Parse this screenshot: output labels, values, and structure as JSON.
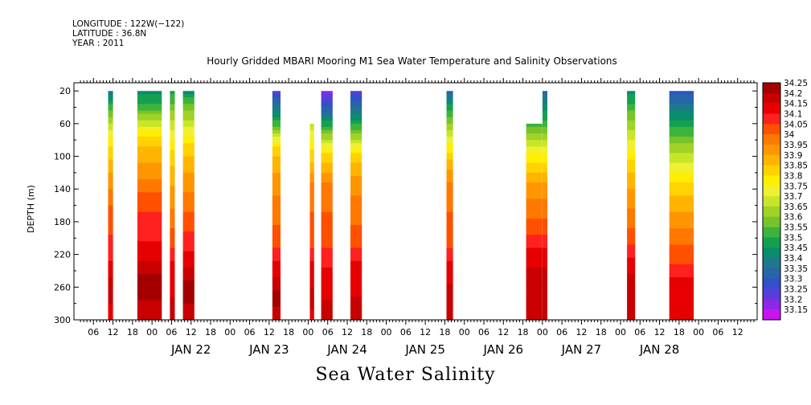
{
  "header": {
    "meta": [
      "LONGITUDE : 122W(−122)",
      "LATITUDE : 36.8N",
      "YEAR : 2011"
    ]
  },
  "chart_data": {
    "type": "heatmap",
    "title": "Hourly Gridded MBARI Mooring M1 Sea Water Temperature and Salinity Observations",
    "xlabel": "Sea Water Salinity",
    "ylabel": "DEPTH (m)",
    "x_unit": "hours since Jan 21 2011 00:00",
    "xlim": [
      0,
      210
    ],
    "ylim": [
      300,
      10
    ],
    "y_ticks": [
      20,
      60,
      100,
      140,
      180,
      220,
      260,
      300
    ],
    "hour_tick_labels": [
      "00",
      "06",
      "12",
      "18"
    ],
    "day_labels": [
      {
        "label": "JAN 22",
        "hour": 36
      },
      {
        "label": "JAN 23",
        "hour": 60
      },
      {
        "label": "JAN 24",
        "hour": 84
      },
      {
        "label": "JAN 25",
        "hour": 108
      },
      {
        "label": "JAN 26",
        "hour": 132
      },
      {
        "label": "JAN 27",
        "hour": 156
      },
      {
        "label": "JAN 28",
        "hour": 180
      }
    ],
    "colorbar": {
      "levels": [
        "34.25",
        "34.2",
        "34.15",
        "34.1",
        "34.05",
        "34",
        "33.95",
        "33.9",
        "33.85",
        "33.8",
        "33.75",
        "33.7",
        "33.65",
        "33.6",
        "33.55",
        "33.5",
        "33.45",
        "33.4",
        "33.35",
        "33.3",
        "33.25",
        "33.2",
        "33.15"
      ],
      "colors": [
        "#a50000",
        "#c80000",
        "#e60000",
        "#ff2020",
        "#ff5000",
        "#ff7800",
        "#ff9600",
        "#ffb400",
        "#ffd200",
        "#ffee00",
        "#f0f030",
        "#c8e628",
        "#a0d228",
        "#78c328",
        "#3cb43c",
        "#14a050",
        "#0a8c6e",
        "#1e788c",
        "#2864aa",
        "#3250c8",
        "#5a3cdc",
        "#8c28e6",
        "#c814f0"
      ]
    },
    "columns": [
      {
        "start": 10.5,
        "end": 12,
        "top": 20,
        "profile": [
          [
            20,
            33.4
          ],
          [
            40,
            33.55
          ],
          [
            80,
            33.8
          ],
          [
            130,
            33.95
          ],
          [
            170,
            34.05
          ],
          [
            220,
            34.1
          ],
          [
            260,
            34.2
          ],
          [
            300,
            34.15
          ]
        ]
      },
      {
        "start": 19.5,
        "end": 27,
        "top": 20,
        "profile": [
          [
            20,
            33.45
          ],
          [
            40,
            33.55
          ],
          [
            80,
            33.85
          ],
          [
            120,
            33.95
          ],
          [
            150,
            34.05
          ],
          [
            220,
            34.15
          ],
          [
            250,
            34.25
          ],
          [
            300,
            34.2
          ]
        ]
      },
      {
        "start": 29.5,
        "end": 31,
        "top": 20,
        "profile": [
          [
            20,
            33.5
          ],
          [
            60,
            33.7
          ],
          [
            100,
            33.85
          ],
          [
            150,
            33.95
          ],
          [
            200,
            34.05
          ],
          [
            240,
            34.15
          ],
          [
            300,
            34.2
          ]
        ]
      },
      {
        "start": 33.5,
        "end": 37,
        "top": 20,
        "profile": [
          [
            20,
            33.45
          ],
          [
            40,
            33.6
          ],
          [
            90,
            33.85
          ],
          [
            130,
            33.95
          ],
          [
            180,
            34.05
          ],
          [
            230,
            34.15
          ],
          [
            260,
            34.25
          ],
          [
            300,
            34.2
          ]
        ]
      },
      {
        "start": 61,
        "end": 63.5,
        "top": 20,
        "profile": [
          [
            20,
            33.25
          ],
          [
            40,
            33.4
          ],
          [
            60,
            33.55
          ],
          [
            90,
            33.85
          ],
          [
            130,
            33.95
          ],
          [
            200,
            34.05
          ],
          [
            240,
            34.15
          ],
          [
            270,
            34.25
          ],
          [
            300,
            34.2
          ]
        ]
      },
      {
        "start": 72.5,
        "end": 73.8,
        "top": 60,
        "profile": [
          [
            60,
            33.7
          ],
          [
            100,
            33.85
          ],
          [
            140,
            34.0
          ],
          [
            200,
            34.05
          ],
          [
            240,
            34.15
          ],
          [
            280,
            34.2
          ],
          [
            300,
            34.15
          ]
        ]
      },
      {
        "start": 76,
        "end": 79.5,
        "top": 20,
        "profile": [
          [
            20,
            33.2
          ],
          [
            45,
            33.35
          ],
          [
            70,
            33.6
          ],
          [
            100,
            33.85
          ],
          [
            140,
            34.0
          ],
          [
            200,
            34.05
          ],
          [
            250,
            34.15
          ],
          [
            300,
            34.2
          ]
        ]
      },
      {
        "start": 85,
        "end": 88.5,
        "top": 20,
        "profile": [
          [
            20,
            33.25
          ],
          [
            45,
            33.4
          ],
          [
            70,
            33.6
          ],
          [
            100,
            33.85
          ],
          [
            130,
            33.95
          ],
          [
            200,
            34.05
          ],
          [
            240,
            34.15
          ],
          [
            300,
            34.2
          ]
        ]
      },
      {
        "start": 114.5,
        "end": 116.5,
        "top": 20,
        "profile": [
          [
            20,
            33.35
          ],
          [
            40,
            33.5
          ],
          [
            80,
            33.75
          ],
          [
            110,
            33.9
          ],
          [
            140,
            34.0
          ],
          [
            200,
            34.05
          ],
          [
            240,
            34.15
          ],
          [
            270,
            34.2
          ],
          [
            300,
            34.2
          ]
        ]
      },
      {
        "start": 139,
        "end": 144,
        "top": 60,
        "profile": [
          [
            60,
            33.55
          ],
          [
            100,
            33.8
          ],
          [
            140,
            33.95
          ],
          [
            190,
            34.05
          ],
          [
            220,
            34.15
          ],
          [
            250,
            34.2
          ],
          [
            300,
            34.2
          ]
        ]
      },
      {
        "start": 144,
        "end": 145.5,
        "top": 20,
        "profile": [
          [
            20,
            33.35
          ],
          [
            60,
            33.55
          ],
          [
            100,
            33.8
          ],
          [
            140,
            33.95
          ],
          [
            190,
            34.05
          ],
          [
            220,
            34.15
          ],
          [
            250,
            34.2
          ],
          [
            300,
            34.2
          ]
        ]
      },
      {
        "start": 170,
        "end": 172.5,
        "top": 20,
        "profile": [
          [
            20,
            33.45
          ],
          [
            60,
            33.65
          ],
          [
            110,
            33.85
          ],
          [
            150,
            33.95
          ],
          [
            200,
            34.05
          ],
          [
            230,
            34.15
          ],
          [
            260,
            34.2
          ],
          [
            300,
            34.2
          ]
        ]
      },
      {
        "start": 183,
        "end": 190.5,
        "top": 20,
        "profile": [
          [
            20,
            33.3
          ],
          [
            40,
            33.4
          ],
          [
            60,
            33.5
          ],
          [
            100,
            33.7
          ],
          [
            140,
            33.85
          ],
          [
            180,
            33.95
          ],
          [
            220,
            34.05
          ],
          [
            260,
            34.15
          ],
          [
            300,
            34.15
          ]
        ]
      }
    ]
  }
}
